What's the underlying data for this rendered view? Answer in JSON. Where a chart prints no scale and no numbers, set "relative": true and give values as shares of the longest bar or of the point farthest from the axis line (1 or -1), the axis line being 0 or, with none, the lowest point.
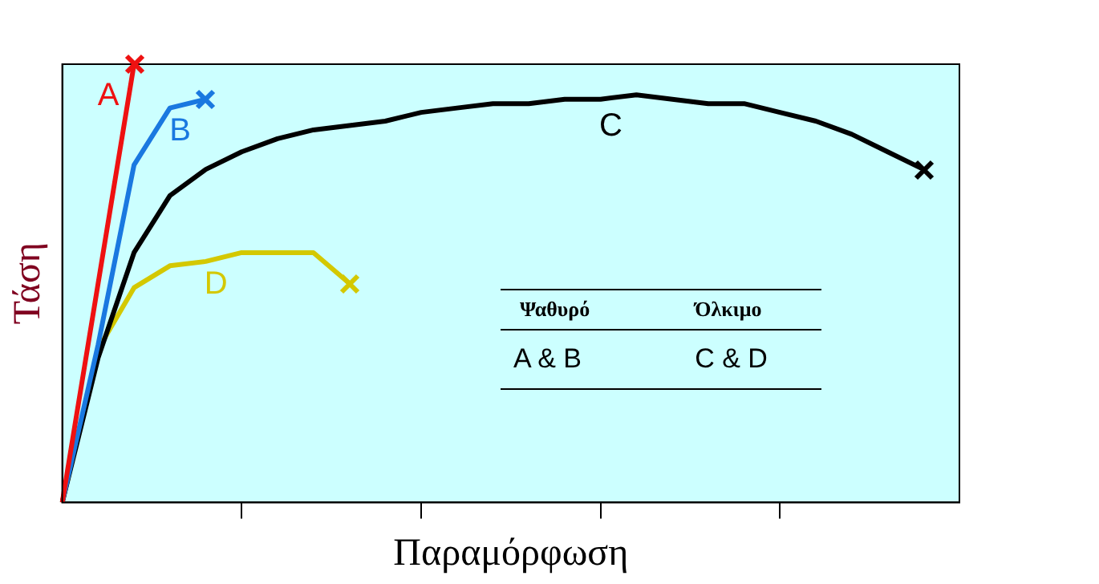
{
  "chart_data": {
    "type": "line",
    "relative": true,
    "xlabel": "Παραμόρφωση",
    "ylabel": "Τάση",
    "categories": [
      null,
      null,
      null,
      null,
      null,
      null,
      null,
      null,
      null,
      null,
      null,
      null,
      null,
      null,
      null,
      null,
      null,
      null,
      null,
      null,
      null,
      null,
      null,
      null,
      null,
      null
    ],
    "grid": false,
    "legend": false,
    "tick_labels": false,
    "series": [
      {
        "name": "A",
        "color": "#ee1111",
        "values": [
          0,
          0.5,
          1.0,
          null,
          null,
          null,
          null,
          null,
          null,
          null,
          null,
          null,
          null,
          null,
          null,
          null,
          null,
          null,
          null,
          null,
          null,
          null,
          null,
          null,
          null,
          null
        ]
      },
      {
        "name": "B",
        "color": "#1a78e0",
        "values": [
          0,
          0.36,
          0.77,
          0.9,
          0.92,
          null,
          null,
          null,
          null,
          null,
          null,
          null,
          null,
          null,
          null,
          null,
          null,
          null,
          null,
          null,
          null,
          null,
          null,
          null,
          null,
          null
        ]
      },
      {
        "name": "C",
        "color": "#000000",
        "values": [
          0,
          0.33,
          0.57,
          0.7,
          0.76,
          0.8,
          0.83,
          0.85,
          0.86,
          0.87,
          0.89,
          0.9,
          0.91,
          0.91,
          0.92,
          0.92,
          0.93,
          0.92,
          0.91,
          0.91,
          0.89,
          0.87,
          0.84,
          0.8,
          0.76,
          null
        ]
      },
      {
        "name": "D",
        "color": "#d4c800",
        "values": [
          0,
          0.35,
          0.49,
          0.54,
          0.55,
          0.57,
          0.57,
          0.57,
          0.5,
          null,
          null,
          null,
          null,
          null,
          null,
          null,
          null,
          null,
          null,
          null,
          null,
          null,
          null,
          null,
          null,
          null
        ]
      }
    ],
    "annotations": [
      "Ψαθυρό",
      "Όλκιμο",
      "A & B",
      "C & D"
    ]
  }
}
